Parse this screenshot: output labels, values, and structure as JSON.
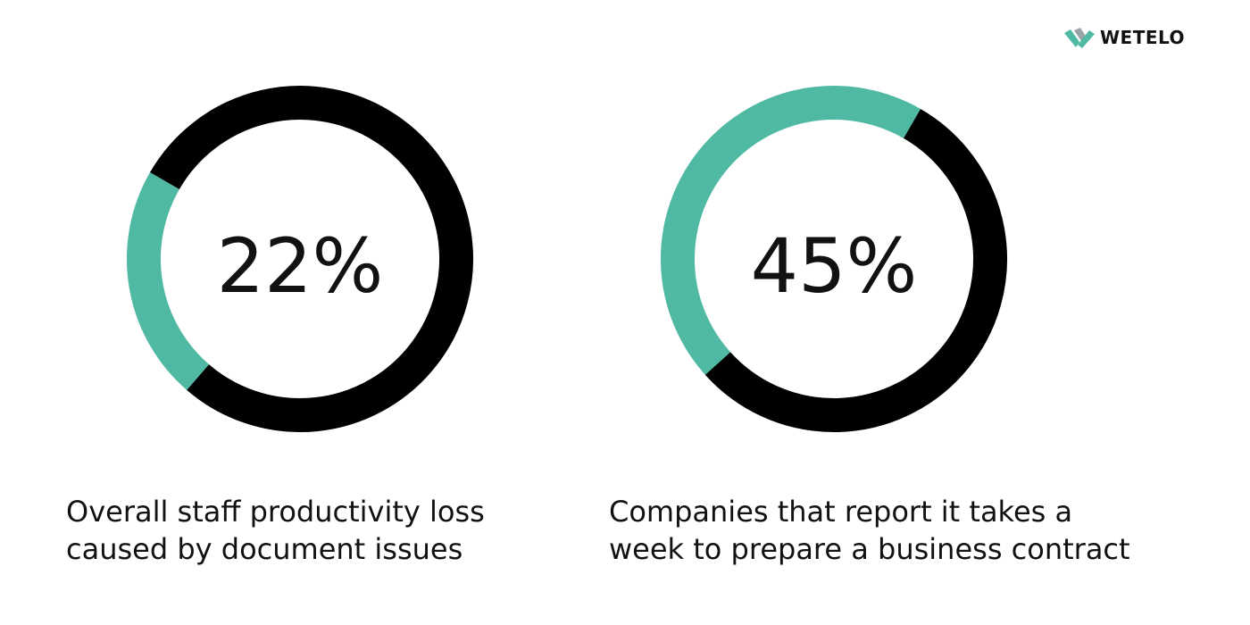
{
  "brand": {
    "name": "WETELO",
    "accent_color": "#4fb9a3",
    "dark_color": "#000000"
  },
  "chart_data": [
    {
      "type": "pie",
      "value_label": "22%",
      "values": [
        22,
        78
      ],
      "colors": [
        "#4fb9a3",
        "#000000"
      ],
      "caption_lines": [
        "Overall staff productivity loss",
        "caused by document issues"
      ]
    },
    {
      "type": "pie",
      "value_label": "45%",
      "values": [
        45,
        55
      ],
      "colors": [
        "#4fb9a3",
        "#000000"
      ],
      "caption_lines": [
        "Companies that report it takes a",
        "week to prepare a business contract"
      ]
    }
  ]
}
